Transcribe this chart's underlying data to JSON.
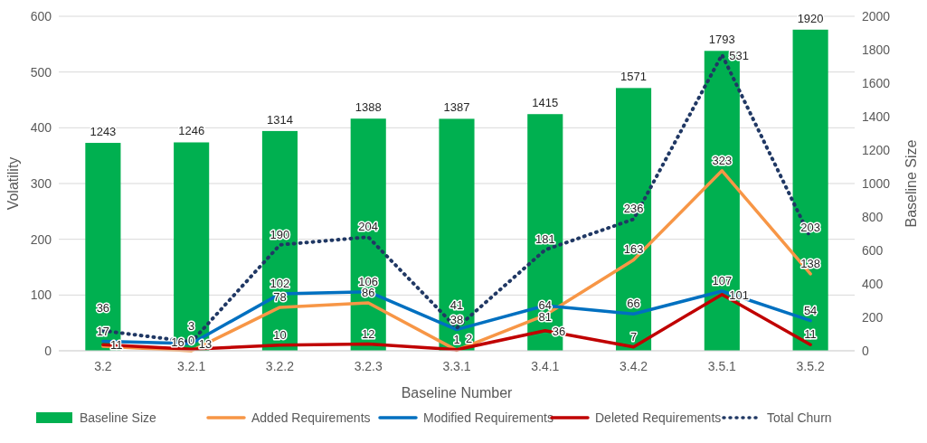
{
  "chart_data": {
    "type": "bar",
    "xlabel": "Baseline Number",
    "ylabel": "Volatility",
    "y2label": "Baseline Size",
    "categories": [
      "3.2",
      "3.2.1",
      "3.2.2",
      "3.2.3",
      "3.3.1",
      "3.4.1",
      "3.4.2",
      "3.5.1",
      "3.5.2"
    ],
    "series": [
      {
        "name": "Baseline Size",
        "axis": "y2",
        "color": "#00b050",
        "values": [
          1243,
          1246,
          1314,
          1388,
          1387,
          1415,
          1571,
          1793,
          1920
        ],
        "value_labels": [
          "1243",
          "1246",
          "1314",
          "1388",
          "1387",
          "1415",
          "1571",
          "1793",
          "1920"
        ]
      },
      {
        "name": "Added Requirements",
        "type": "line",
        "color": "#f79646",
        "values": [
          8,
          0,
          78,
          86,
          1,
          64,
          163,
          323,
          138
        ],
        "value_labels": [
          null,
          "0",
          "78",
          "86",
          "1",
          "64",
          "163",
          "323",
          "138"
        ]
      },
      {
        "name": "Modified Requirements",
        "type": "line",
        "color": "#0070c0",
        "values": [
          17,
          13,
          102,
          106,
          38,
          81,
          66,
          107,
          54
        ],
        "value_labels": [
          "17",
          "13",
          "102",
          "106",
          "38",
          "81",
          "66",
          "107",
          "54"
        ]
      },
      {
        "name": "Deleted Requirements",
        "type": "line",
        "color": "#c00000",
        "values": [
          11,
          3,
          10,
          12,
          2,
          36,
          7,
          101,
          11
        ],
        "value_labels": [
          "11",
          "3",
          "10",
          "12",
          "2",
          "36",
          "7",
          "101",
          "11"
        ]
      },
      {
        "name": "Total Churn",
        "type": "line",
        "color": "#203864",
        "line_style": "dotted",
        "values": [
          36,
          16,
          190,
          204,
          41,
          181,
          236,
          531,
          203
        ],
        "value_labels": [
          "36",
          "16",
          "190",
          "204",
          "41",
          "181",
          "236",
          "531",
          "203"
        ]
      }
    ],
    "ylim": [
      0,
      600
    ],
    "yticks": [
      0,
      100,
      200,
      300,
      400,
      500,
      600
    ],
    "y2lim": [
      0,
      2000
    ],
    "y2ticks": [
      0,
      200,
      400,
      600,
      800,
      1000,
      1200,
      1400,
      1600,
      1800,
      2000
    ],
    "grid": "y",
    "legend": "bottom"
  }
}
